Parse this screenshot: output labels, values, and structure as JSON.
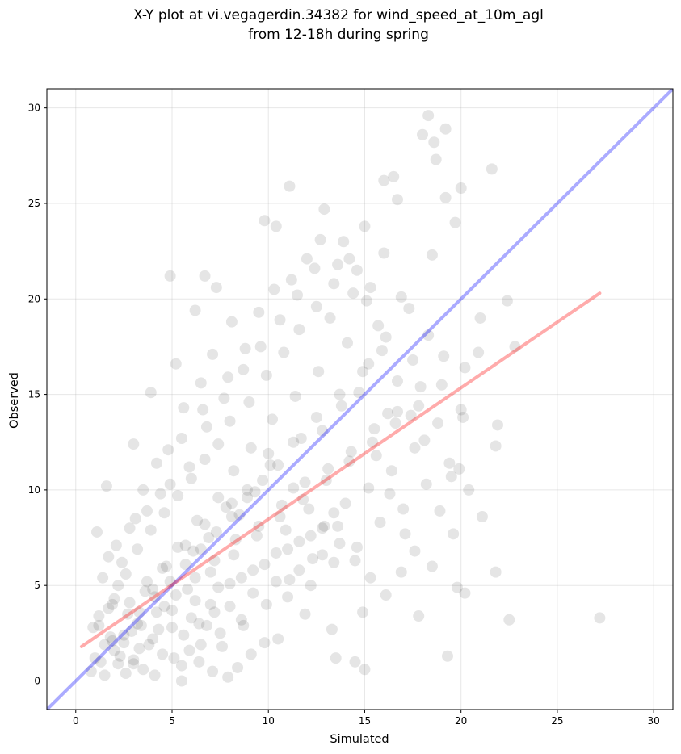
{
  "chart_data": {
    "type": "scatter",
    "title": "X-Y plot at vi.vegagerdin.34382 for wind_speed_at_10m_agl",
    "subtitle": "from 12-18h during spring",
    "xlabel": "Simulated",
    "ylabel": "Observed",
    "xlim": [
      -1.5,
      31.0
    ],
    "ylim": [
      -1.5,
      31.0
    ],
    "xticks": [
      0,
      5,
      10,
      15,
      20,
      25,
      30
    ],
    "yticks": [
      0,
      5,
      10,
      15,
      20,
      25,
      30
    ],
    "grid": true,
    "point_color": "#000000",
    "identity_line": {
      "x": [
        -1.5,
        31.0
      ],
      "y": [
        -1.5,
        31.0
      ],
      "color": "#0000ff"
    },
    "regression_line": {
      "x": [
        0.3,
        27.2
      ],
      "y": [
        1.8,
        20.3
      ],
      "color": "#ff0000"
    },
    "points": [
      [
        0.8,
        0.5
      ],
      [
        1.0,
        1.2
      ],
      [
        1.2,
        2.9
      ],
      [
        1.5,
        0.3
      ],
      [
        1.7,
        3.8
      ],
      [
        2.0,
        1.6
      ],
      [
        2.2,
        0.9
      ],
      [
        2.5,
        2.4
      ],
      [
        2.8,
        4.1
      ],
      [
        3.0,
        1.1
      ],
      [
        3.2,
        3.0
      ],
      [
        3.5,
        0.6
      ],
      [
        3.7,
        5.2
      ],
      [
        4.0,
        2.2
      ],
      [
        4.2,
        3.6
      ],
      [
        4.5,
        1.4
      ],
      [
        4.7,
        6.0
      ],
      [
        5.0,
        2.8
      ],
      [
        5.2,
        4.5
      ],
      [
        5.5,
        0.8
      ],
      [
        5.7,
        7.1
      ],
      [
        6.0,
        3.3
      ],
      [
        6.2,
        5.4
      ],
      [
        6.5,
        1.9
      ],
      [
        6.7,
        8.2
      ],
      [
        7.0,
        4.0
      ],
      [
        7.2,
        6.3
      ],
      [
        7.5,
        2.5
      ],
      [
        7.8,
        9.1
      ],
      [
        8.0,
        5.1
      ],
      [
        8.3,
        7.4
      ],
      [
        8.6,
        3.2
      ],
      [
        8.9,
        10.0
      ],
      [
        9.2,
        5.8
      ],
      [
        9.5,
        8.1
      ],
      [
        9.8,
        2.0
      ],
      [
        10.1,
        11.3
      ],
      [
        10.4,
        6.7
      ],
      [
        10.7,
        9.2
      ],
      [
        11.0,
        4.4
      ],
      [
        11.3,
        12.5
      ],
      [
        11.6,
        7.3
      ],
      [
        11.9,
        10.4
      ],
      [
        12.2,
        5.0
      ],
      [
        12.5,
        13.8
      ],
      [
        12.8,
        8.0
      ],
      [
        13.1,
        11.1
      ],
      [
        13.4,
        6.2
      ],
      [
        13.7,
        15.0
      ],
      [
        14.0,
        9.3
      ],
      [
        14.3,
        12.0
      ],
      [
        14.6,
        7.0
      ],
      [
        14.9,
        16.2
      ],
      [
        15.2,
        10.1
      ],
      [
        15.5,
        13.2
      ],
      [
        15.8,
        8.3
      ],
      [
        16.1,
        18.0
      ],
      [
        16.4,
        11.0
      ],
      [
        16.7,
        14.1
      ],
      [
        17.0,
        9.0
      ],
      [
        17.3,
        19.5
      ],
      [
        17.6,
        12.2
      ],
      [
        17.9,
        15.4
      ],
      [
        18.2,
        10.3
      ],
      [
        18.5,
        22.3
      ],
      [
        18.8,
        13.5
      ],
      [
        19.1,
        17.0
      ],
      [
        19.4,
        11.4
      ],
      [
        19.7,
        24.0
      ],
      [
        20.0,
        14.2
      ],
      [
        16.0,
        26.2
      ],
      [
        16.5,
        26.4
      ],
      [
        16.7,
        25.2
      ],
      [
        18.0,
        28.6
      ],
      [
        18.3,
        29.6
      ],
      [
        18.6,
        28.2
      ],
      [
        19.2,
        28.9
      ],
      [
        18.7,
        27.3
      ],
      [
        21.6,
        26.8
      ],
      [
        11.1,
        25.9
      ],
      [
        9.8,
        24.1
      ],
      [
        10.4,
        23.8
      ],
      [
        12.9,
        24.7
      ],
      [
        15.0,
        23.8
      ],
      [
        20.0,
        25.8
      ],
      [
        19.2,
        25.3
      ],
      [
        21.0,
        19.0
      ],
      [
        22.4,
        19.9
      ],
      [
        22.8,
        17.5
      ],
      [
        21.9,
        13.4
      ],
      [
        21.8,
        12.3
      ],
      [
        21.8,
        5.7
      ],
      [
        22.5,
        3.2
      ],
      [
        27.2,
        3.3
      ],
      [
        20.2,
        4.6
      ],
      [
        19.8,
        4.9
      ],
      [
        19.3,
        1.3
      ],
      [
        15.0,
        0.6
      ],
      [
        14.5,
        1.0
      ],
      [
        13.5,
        1.2
      ],
      [
        7.9,
        0.2
      ],
      [
        6.4,
        1.0
      ],
      [
        5.5,
        0.0
      ],
      [
        4.1,
        0.3
      ],
      [
        3.3,
        1.7
      ],
      [
        2.6,
        0.4
      ],
      [
        1.9,
        2.1
      ],
      [
        1.3,
        1.0
      ],
      [
        0.9,
        2.8
      ],
      [
        1.4,
        5.4
      ],
      [
        1.1,
        7.8
      ],
      [
        1.6,
        10.2
      ],
      [
        3.0,
        12.4
      ],
      [
        3.9,
        15.1
      ],
      [
        4.9,
        21.2
      ],
      [
        6.7,
        21.2
      ],
      [
        5.2,
        16.6
      ],
      [
        6.2,
        19.4
      ],
      [
        7.3,
        20.6
      ],
      [
        8.1,
        18.8
      ],
      [
        2.4,
        6.2
      ],
      [
        3.1,
        8.5
      ],
      [
        4.4,
        9.8
      ],
      [
        5.9,
        11.2
      ],
      [
        6.8,
        13.3
      ],
      [
        7.7,
        14.8
      ],
      [
        8.7,
        16.3
      ],
      [
        9.6,
        17.5
      ],
      [
        10.6,
        18.9
      ],
      [
        11.5,
        20.2
      ],
      [
        12.4,
        21.6
      ],
      [
        13.2,
        19.0
      ],
      [
        14.1,
        17.7
      ],
      [
        14.6,
        21.5
      ],
      [
        15.3,
        20.6
      ],
      [
        16.0,
        22.4
      ],
      [
        13.9,
        23.0
      ],
      [
        12.6,
        16.2
      ],
      [
        11.4,
        14.9
      ],
      [
        10.2,
        13.7
      ],
      [
        9.1,
        12.2
      ],
      [
        8.2,
        11.0
      ],
      [
        7.4,
        9.6
      ],
      [
        6.3,
        8.4
      ],
      [
        5.3,
        7.0
      ],
      [
        4.5,
        5.9
      ],
      [
        3.6,
        4.7
      ],
      [
        2.7,
        3.5
      ],
      [
        1.8,
        2.3
      ],
      [
        2.2,
        5.0
      ],
      [
        3.4,
        2.9
      ],
      [
        4.6,
        3.9
      ],
      [
        5.8,
        4.8
      ],
      [
        7.0,
        5.7
      ],
      [
        8.2,
        6.6
      ],
      [
        9.4,
        7.6
      ],
      [
        10.6,
        8.6
      ],
      [
        11.8,
        9.5
      ],
      [
        13.0,
        10.5
      ],
      [
        14.2,
        11.5
      ],
      [
        15.4,
        12.5
      ],
      [
        16.6,
        13.5
      ],
      [
        17.8,
        14.4
      ],
      [
        19.0,
        15.5
      ],
      [
        20.2,
        16.4
      ],
      [
        20.9,
        17.2
      ],
      [
        17.5,
        16.8
      ],
      [
        18.3,
        18.1
      ],
      [
        16.9,
        20.1
      ],
      [
        15.7,
        18.6
      ],
      [
        13.6,
        8.1
      ],
      [
        12.3,
        6.4
      ],
      [
        11.1,
        5.3
      ],
      [
        9.9,
        4.0
      ],
      [
        8.7,
        2.9
      ],
      [
        7.6,
        1.8
      ],
      [
        6.4,
        3.0
      ],
      [
        5.1,
        1.2
      ],
      [
        4.0,
        4.8
      ],
      [
        2.9,
        2.6
      ],
      [
        6.1,
        6.8
      ],
      [
        6.9,
        7.5
      ],
      [
        7.2,
        3.6
      ],
      [
        8.5,
        8.7
      ],
      [
        9.3,
        9.9
      ],
      [
        10.0,
        11.9
      ],
      [
        10.9,
        7.9
      ],
      [
        11.7,
        12.7
      ],
      [
        12.8,
        13.1
      ],
      [
        13.8,
        14.4
      ],
      [
        14.7,
        15.1
      ],
      [
        15.6,
        11.8
      ],
      [
        16.3,
        9.8
      ],
      [
        17.1,
        7.7
      ],
      [
        17.8,
        3.4
      ],
      [
        18.5,
        6.0
      ],
      [
        19.6,
        7.7
      ],
      [
        20.4,
        10.0
      ],
      [
        21.1,
        8.6
      ],
      [
        19.9,
        11.1
      ],
      [
        4.8,
        12.1
      ],
      [
        5.6,
        14.3
      ],
      [
        6.5,
        15.6
      ],
      [
        7.1,
        17.1
      ],
      [
        8.0,
        13.6
      ],
      [
        9.0,
        14.6
      ],
      [
        9.9,
        16.0
      ],
      [
        10.8,
        17.2
      ],
      [
        11.6,
        18.4
      ],
      [
        12.5,
        19.6
      ],
      [
        13.4,
        20.8
      ],
      [
        14.2,
        22.1
      ],
      [
        15.1,
        19.9
      ],
      [
        15.9,
        17.3
      ],
      [
        16.7,
        15.7
      ],
      [
        17.4,
        13.9
      ],
      [
        18.1,
        12.6
      ],
      [
        18.9,
        8.9
      ],
      [
        19.5,
        10.7
      ],
      [
        20.1,
        13.8
      ],
      [
        1.5,
        1.9
      ],
      [
        2.3,
        1.3
      ],
      [
        3.0,
        0.9
      ],
      [
        3.8,
        1.9
      ],
      [
        4.3,
        2.7
      ],
      [
        5.0,
        3.7
      ],
      [
        5.6,
        2.4
      ],
      [
        6.2,
        4.2
      ],
      [
        6.8,
        2.9
      ],
      [
        7.4,
        4.9
      ],
      [
        8.0,
        3.9
      ],
      [
        8.6,
        5.4
      ],
      [
        9.2,
        4.6
      ],
      [
        9.8,
        6.1
      ],
      [
        10.4,
        5.2
      ],
      [
        11.0,
        6.9
      ],
      [
        11.6,
        5.8
      ],
      [
        12.2,
        7.6
      ],
      [
        12.8,
        6.6
      ],
      [
        13.4,
        8.8
      ],
      [
        2.0,
        4.3
      ],
      [
        2.6,
        5.6
      ],
      [
        3.2,
        6.9
      ],
      [
        3.9,
        7.9
      ],
      [
        4.6,
        8.8
      ],
      [
        5.3,
        9.7
      ],
      [
        6.0,
        10.6
      ],
      [
        6.7,
        11.6
      ],
      [
        7.4,
        12.4
      ],
      [
        8.1,
        9.3
      ],
      [
        1.2,
        3.4
      ],
      [
        1.9,
        4.0
      ],
      [
        2.5,
        2.0
      ],
      [
        3.3,
        3.6
      ],
      [
        4.1,
        4.4
      ],
      [
        4.9,
        5.2
      ],
      [
        5.7,
        6.1
      ],
      [
        6.5,
        6.9
      ],
      [
        7.3,
        7.8
      ],
      [
        8.1,
        8.6
      ],
      [
        8.9,
        9.6
      ],
      [
        9.7,
        10.5
      ],
      [
        10.5,
        11.3
      ],
      [
        11.3,
        10.1
      ],
      [
        12.1,
        9.0
      ],
      [
        12.9,
        8.1
      ],
      [
        13.7,
        7.2
      ],
      [
        14.5,
        6.3
      ],
      [
        15.3,
        5.4
      ],
      [
        16.1,
        4.5
      ],
      [
        16.9,
        5.7
      ],
      [
        17.6,
        6.8
      ],
      [
        14.9,
        3.6
      ],
      [
        13.3,
        2.7
      ],
      [
        11.9,
        3.5
      ],
      [
        10.5,
        2.2
      ],
      [
        9.1,
        1.4
      ],
      [
        8.4,
        0.7
      ],
      [
        7.1,
        0.5
      ],
      [
        5.9,
        1.6
      ],
      [
        3.5,
        10.0
      ],
      [
        4.2,
        11.4
      ],
      [
        2.8,
        8.0
      ],
      [
        2.1,
        7.1
      ],
      [
        1.7,
        6.5
      ],
      [
        3.7,
        8.9
      ],
      [
        4.9,
        10.3
      ],
      [
        5.5,
        12.7
      ],
      [
        6.6,
        14.2
      ],
      [
        7.9,
        15.9
      ],
      [
        8.8,
        17.4
      ],
      [
        9.5,
        19.3
      ],
      [
        10.3,
        20.5
      ],
      [
        11.2,
        21.0
      ],
      [
        12.0,
        22.1
      ],
      [
        12.7,
        23.1
      ],
      [
        13.6,
        21.8
      ],
      [
        14.4,
        20.3
      ],
      [
        15.2,
        16.6
      ],
      [
        16.2,
        14.0
      ]
    ]
  }
}
